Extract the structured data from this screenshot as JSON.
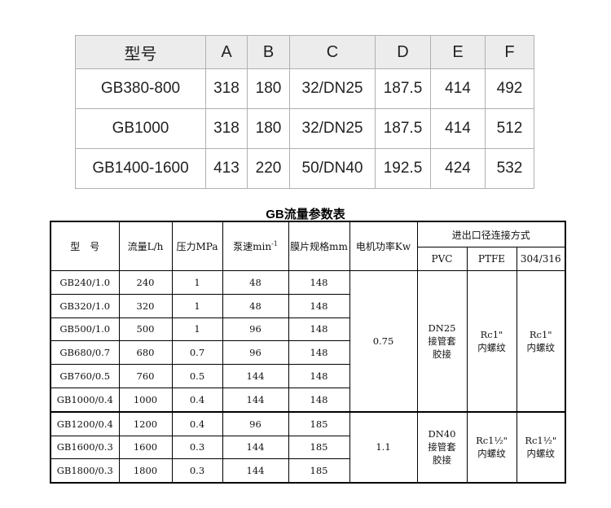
{
  "dims_table": {
    "headers": [
      "型号",
      "A",
      "B",
      "C",
      "D",
      "E",
      "F"
    ],
    "rows": [
      [
        "GB380-800",
        "318",
        "180",
        "32/DN25",
        "187.5",
        "414",
        "492"
      ],
      [
        "GB1000",
        "318",
        "180",
        "32/DN25",
        "187.5",
        "414",
        "512"
      ],
      [
        "GB1400-1600",
        "413",
        "220",
        "50/DN40",
        "192.5",
        "424",
        "532"
      ]
    ]
  },
  "flow_table": {
    "title": "GB流量参数表",
    "headers": {
      "model": "型　号",
      "flow": "流量L/h",
      "pressure": "压力MPa",
      "speed": "泵速min",
      "speed_sup": "-1",
      "diaphragm": "膜片规格mm",
      "power": "电机功率Kw",
      "connection": "进出口径连接方式",
      "pvc": "PVC",
      "ptfe": "PTFE",
      "ss": "304/316"
    },
    "rows": [
      [
        "GB240/1.0",
        "240",
        "1",
        "48",
        "148"
      ],
      [
        "GB320/1.0",
        "320",
        "1",
        "48",
        "148"
      ],
      [
        "GB500/1.0",
        "500",
        "1",
        "96",
        "148"
      ],
      [
        "GB680/0.7",
        "680",
        "0.7",
        "96",
        "148"
      ],
      [
        "GB760/0.5",
        "760",
        "0.5",
        "144",
        "148"
      ],
      [
        "GB1000/0.4",
        "1000",
        "0.4",
        "144",
        "148"
      ],
      [
        "GB1200/0.4",
        "1200",
        "0.4",
        "96",
        "185"
      ],
      [
        "GB1600/0.3",
        "1600",
        "0.3",
        "144",
        "185"
      ],
      [
        "GB1800/0.3",
        "1800",
        "0.3",
        "144",
        "185"
      ]
    ],
    "groups": [
      {
        "power": "0.75",
        "pvc": "DN25\n接管套\n胶接",
        "ptfe": "Rc1\"\n内螺纹",
        "ss": "Rc1\"\n内螺纹"
      },
      {
        "power": "1.1",
        "pvc": "DN40\n接管套\n胶接",
        "ptfe": "Rc1½\"\n内螺纹",
        "ss": "Rc1½\"\n内螺纹"
      }
    ]
  }
}
